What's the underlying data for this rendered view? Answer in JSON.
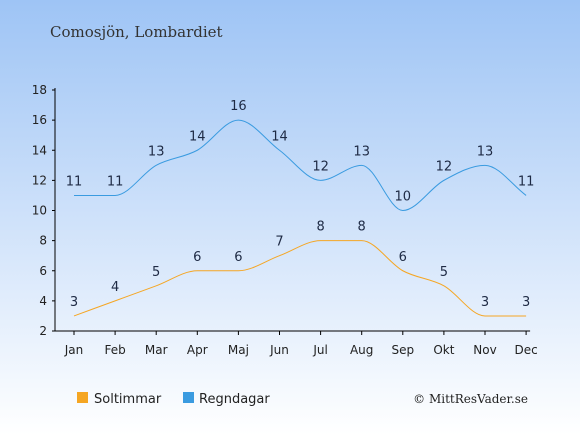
{
  "title": "Comosjön, Lombardiet",
  "credit": "© MittResVader.se",
  "colors": {
    "background_top": "#9ec4f5",
    "background_bottom": "#ffffff",
    "axis": "#000000",
    "sun_series": "#f5a623",
    "rain_series": "#3a9be0",
    "label_text": "#1e2a44"
  },
  "chart_data": {
    "type": "line",
    "title": "Comosjön, Lombardiet",
    "xlabel": "",
    "ylabel": "",
    "categories": [
      "Jan",
      "Feb",
      "Mar",
      "Apr",
      "Maj",
      "Jun",
      "Jul",
      "Aug",
      "Sep",
      "Okt",
      "Nov",
      "Dec"
    ],
    "ylim": [
      2,
      18
    ],
    "yticks": [
      2,
      4,
      6,
      8,
      10,
      12,
      14,
      16,
      18
    ],
    "grid": false,
    "legend_position": "bottom-left",
    "series": [
      {
        "name": "Soltimmar",
        "color": "#f5a623",
        "values": [
          3,
          4,
          5,
          6,
          6,
          7,
          8,
          8,
          6,
          5,
          3,
          3
        ]
      },
      {
        "name": "Regndagar",
        "color": "#3a9be0",
        "values": [
          11,
          11,
          13,
          14,
          16,
          14,
          12,
          13,
          10,
          12,
          13,
          11
        ]
      }
    ]
  }
}
